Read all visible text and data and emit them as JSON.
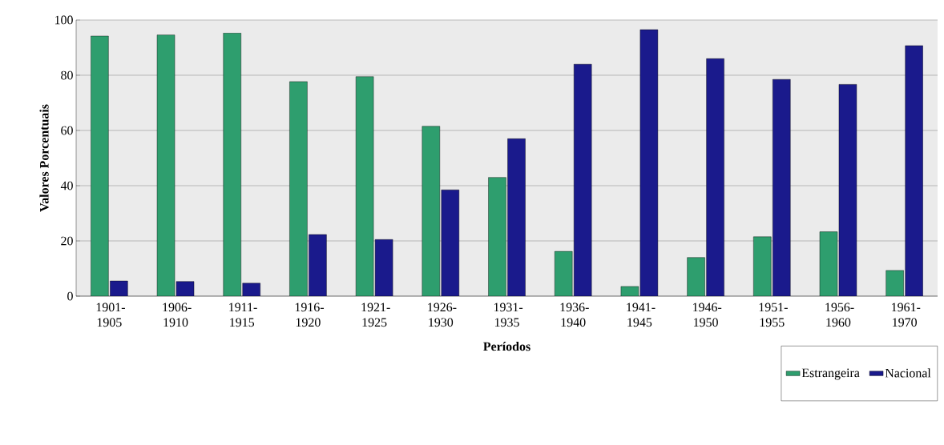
{
  "chart_data": {
    "type": "bar",
    "xlabel": "Períodos",
    "ylabel": "Valores Porcentuais",
    "categories": [
      "1901-1905",
      "1906-1910",
      "1911-1915",
      "1916-1920",
      "1921-1925",
      "1926-1930",
      "1931-1935",
      "1936-1940",
      "1941-1945",
      "1946-1950",
      "1951-1955",
      "1956-1960",
      "1961-1970"
    ],
    "series": [
      {
        "name": "Estrangeira",
        "color": "#2e9e6e",
        "values": [
          94.2,
          94.6,
          95.3,
          77.7,
          79.5,
          61.5,
          43,
          16.2,
          3.5,
          14,
          21.5,
          23.3,
          9.3
        ]
      },
      {
        "name": "Nacional",
        "color": "#1a1a8c",
        "values": [
          5.5,
          5.3,
          4.7,
          22.3,
          20.5,
          38.5,
          57,
          84,
          96.5,
          86,
          78.5,
          76.7,
          90.7
        ]
      }
    ],
    "ylim": [
      0,
      100
    ],
    "yticks": [
      0,
      20,
      40,
      60,
      80,
      100
    ],
    "grid": "y",
    "legend": "bottom right"
  }
}
